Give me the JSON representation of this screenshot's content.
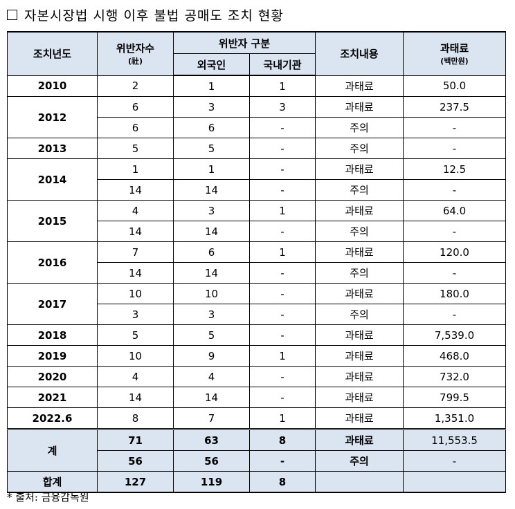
{
  "title": "자본시장법 시행 이후 불법 공매도 조치 현황",
  "header": {
    "year": "조치년도",
    "violators": "위반자수",
    "violators_unit": "(社)",
    "split": "위반자 구분",
    "foreign": "외국인",
    "domestic": "국내기관",
    "action": "조치내용",
    "fine": "과태료",
    "fine_unit": "(백만원)"
  },
  "groups": [
    {
      "year": "2010",
      "rows": [
        [
          "2",
          "1",
          "1",
          "과태료",
          "50.0"
        ]
      ]
    },
    {
      "year": "2012",
      "rows": [
        [
          "6",
          "3",
          "3",
          "과태료",
          "237.5"
        ],
        [
          "6",
          "6",
          "-",
          "주의",
          "-"
        ]
      ]
    },
    {
      "year": "2013",
      "rows": [
        [
          "5",
          "5",
          "-",
          "주의",
          "-"
        ]
      ]
    },
    {
      "year": "2014",
      "rows": [
        [
          "1",
          "1",
          "-",
          "과태료",
          "12.5"
        ],
        [
          "14",
          "14",
          "-",
          "주의",
          "-"
        ]
      ]
    },
    {
      "year": "2015",
      "rows": [
        [
          "4",
          "3",
          "1",
          "과태료",
          "64.0"
        ],
        [
          "14",
          "14",
          "-",
          "주의",
          "-"
        ]
      ]
    },
    {
      "year": "2016",
      "rows": [
        [
          "7",
          "6",
          "1",
          "과태료",
          "120.0"
        ],
        [
          "14",
          "14",
          "-",
          "주의",
          "-"
        ]
      ]
    },
    {
      "year": "2017",
      "rows": [
        [
          "10",
          "10",
          "-",
          "과태료",
          "180.0"
        ],
        [
          "3",
          "3",
          "-",
          "주의",
          "-"
        ]
      ]
    },
    {
      "year": "2018",
      "rows": [
        [
          "5",
          "5",
          "-",
          "과태료",
          "7,539.0"
        ]
      ]
    },
    {
      "year": "2019",
      "rows": [
        [
          "10",
          "9",
          "1",
          "과태료",
          "468.0"
        ]
      ]
    },
    {
      "year": "2020",
      "rows": [
        [
          "4",
          "4",
          "-",
          "과태료",
          "732.0"
        ]
      ]
    },
    {
      "year": "2021",
      "rows": [
        [
          "14",
          "14",
          "-",
          "과태료",
          "799.5"
        ]
      ]
    },
    {
      "year": "2022.6",
      "rows": [
        [
          "8",
          "7",
          "1",
          "과태료",
          "1,351.0"
        ]
      ]
    }
  ],
  "totals": [
    {
      "label": "계",
      "rows": [
        [
          "71",
          "63",
          "8",
          "과태료",
          "11,553.5"
        ],
        [
          "56",
          "56",
          "-",
          "주의",
          "-"
        ]
      ]
    },
    {
      "label": "합계",
      "rows": [
        [
          "127",
          "119",
          "8"
        ]
      ]
    }
  ],
  "source": "* 출처: 금융감독원"
}
